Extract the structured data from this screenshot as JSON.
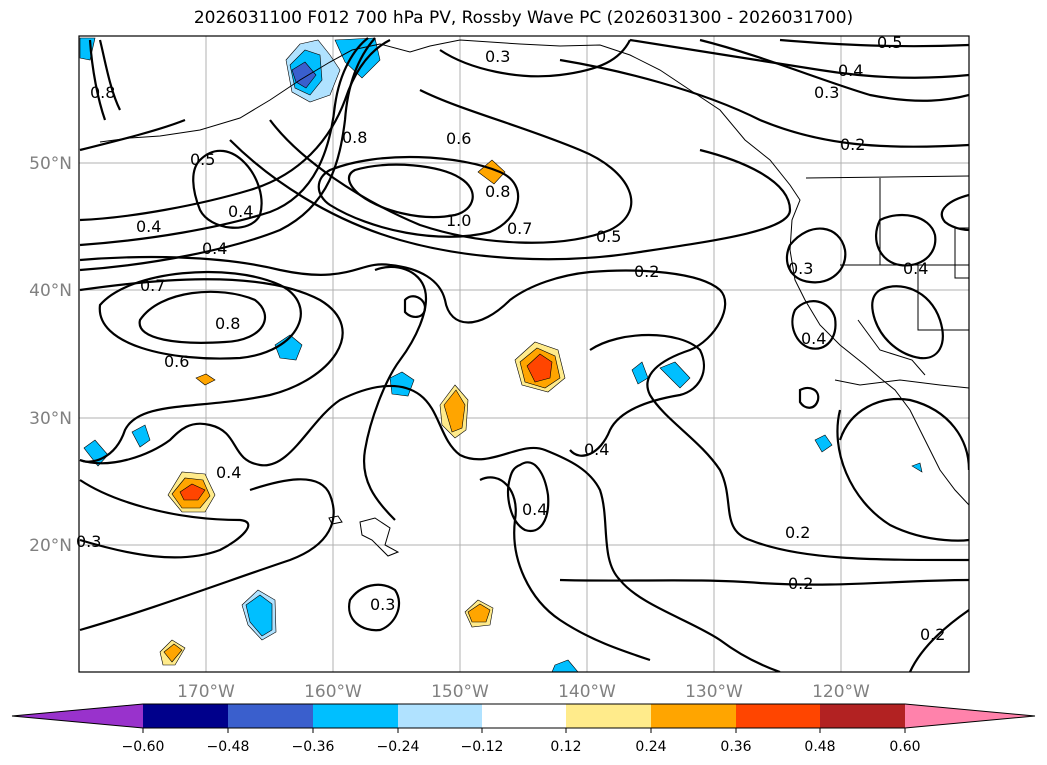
{
  "title": "2026031100 F012 700 hPa PV, Rossby Wave PC (2026031300 - 2026031700)",
  "lat_labels": [
    "50°N",
    "40°N",
    "30°N",
    "20°N"
  ],
  "lon_labels": [
    "170°W",
    "160°W",
    "150°W",
    "140°W",
    "130°W",
    "120°W"
  ],
  "contour_labels": [
    "0.5",
    "0.4",
    "0.3",
    "0.2",
    "0.3",
    "0.8",
    "0.6",
    "0.5",
    "0.4",
    "0.4",
    "0.7",
    "0.8",
    "1.0",
    "0.7",
    "0.8",
    "0.6",
    "0.5",
    "0.4",
    "0.2",
    "0.3",
    "0.4",
    "0.4",
    "0.4",
    "0.3",
    "0.4",
    "0.2",
    "0.2",
    "0.2",
    "0.3",
    "0.8",
    "0.4"
  ],
  "colorbar": {
    "labels": [
      "−0.60",
      "−0.48",
      "−0.36",
      "−0.24",
      "−0.12",
      "0.12",
      "0.24",
      "0.36",
      "0.48",
      "0.60"
    ],
    "colors": [
      "#9932cc",
      "#00008b",
      "#3a5fcd",
      "#00bfff",
      "#b0e2ff",
      "#ffffff",
      "#ffeb8b",
      "#ffa500",
      "#ff4500",
      "#b22222",
      "#ff82ab"
    ]
  }
}
